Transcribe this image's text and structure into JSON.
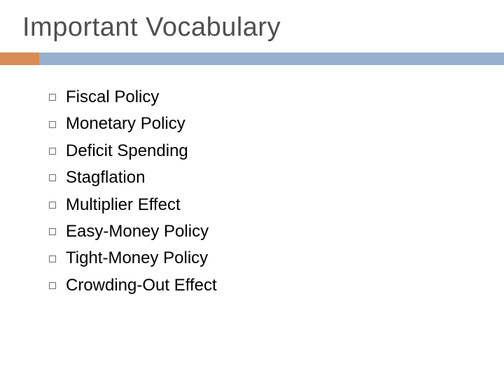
{
  "title": "Important Vocabulary",
  "title_color": "#4f4f4f",
  "title_fontsize": 38,
  "divider": {
    "accent_color": "#d78c53",
    "accent_width": 56,
    "main_color": "#97b0ce",
    "height": 18
  },
  "list": {
    "bullet_border_color": "#6f6f6f",
    "bullet_size": 10,
    "item_fontsize": 24,
    "item_color": "#000000",
    "items": [
      "Fiscal Policy",
      "Monetary Policy",
      "Deficit Spending",
      "Stagflation",
      "Multiplier Effect",
      "Easy-Money Policy",
      "Tight-Money Policy",
      "Crowding-Out Effect"
    ]
  },
  "background_color": "#ffffff"
}
